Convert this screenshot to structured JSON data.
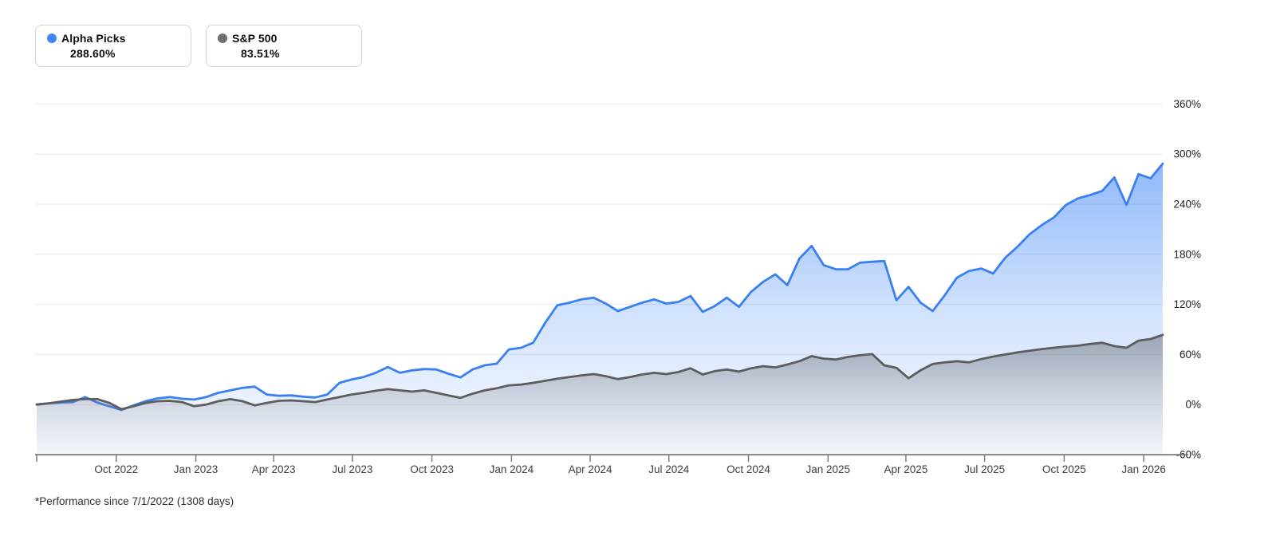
{
  "legend": {
    "items": [
      {
        "name": "Alpha Picks",
        "value": "288.60%",
        "color": "#3f87f6"
      },
      {
        "name": "S&P 500",
        "value": "83.51%",
        "color": "#717171"
      }
    ]
  },
  "footnote": "*Performance since 7/1/2022 (1308 days)",
  "chart_data": {
    "type": "area",
    "title": "Alpha Picks vs S&P 500 cumulative performance",
    "start_date": "7/1/2022",
    "duration_days": 1308,
    "point_interval_days": 14,
    "values_unit": "percent",
    "ylim": [
      -60,
      360
    ],
    "grid": true,
    "legend_position": "top-left",
    "y_ticks": [
      {
        "value": 360,
        "label": "360%"
      },
      {
        "value": 300,
        "label": "300%"
      },
      {
        "value": 240,
        "label": "240%"
      },
      {
        "value": 180,
        "label": "180%"
      },
      {
        "value": 120,
        "label": "120%"
      },
      {
        "value": 60,
        "label": "60%"
      },
      {
        "value": 0,
        "label": "0%"
      },
      {
        "value": -60,
        "label": "-60%"
      }
    ],
    "x_ticks": [
      {
        "day": 92,
        "label": "Oct 2022"
      },
      {
        "day": 184,
        "label": "Jan 2023"
      },
      {
        "day": 274,
        "label": "Apr 2023"
      },
      {
        "day": 365,
        "label": "Jul 2023"
      },
      {
        "day": 457,
        "label": "Oct 2023"
      },
      {
        "day": 549,
        "label": "Jan 2024"
      },
      {
        "day": 640,
        "label": "Apr 2024"
      },
      {
        "day": 731,
        "label": "Jul 2024"
      },
      {
        "day": 823,
        "label": "Oct 2024"
      },
      {
        "day": 915,
        "label": "Jan 2025"
      },
      {
        "day": 1005,
        "label": "Apr 2025"
      },
      {
        "day": 1096,
        "label": "Jul 2025"
      },
      {
        "day": 1188,
        "label": "Oct 2025"
      },
      {
        "day": 1280,
        "label": "Jan 2026"
      }
    ],
    "series": [
      {
        "name": "Alpha Picks",
        "final_value": 288.6,
        "line_color": "#3a80f2",
        "values": [
          0,
          1.5,
          2.5,
          3,
          9,
          2.5,
          -2,
          -6.5,
          -1,
          4,
          7.5,
          9,
          7,
          6,
          9,
          14,
          17,
          20,
          21.5,
          12,
          10.5,
          11,
          9.5,
          8.5,
          12,
          26,
          30,
          33,
          38,
          45,
          38,
          41,
          42.5,
          42,
          37,
          32.5,
          42,
          47,
          49,
          66,
          68,
          74,
          98,
          119,
          122,
          126,
          128,
          121,
          112,
          117,
          122,
          126,
          121,
          123,
          130,
          111,
          118,
          128,
          117,
          135,
          147,
          156,
          143,
          175,
          190,
          167,
          162,
          162,
          170,
          171,
          172,
          125,
          141,
          122,
          112,
          131,
          152,
          160,
          163,
          157,
          176,
          189,
          204,
          215,
          224,
          239,
          247,
          251,
          256,
          272,
          239,
          276,
          271,
          288.6
        ]
      },
      {
        "name": "S&P 500",
        "final_value": 83.51,
        "line_color": "#5d5d5d",
        "values": [
          0,
          1.5,
          3.5,
          5.5,
          6.5,
          6.5,
          2,
          -5.5,
          -2,
          2,
          4,
          4.5,
          3,
          -2,
          0,
          4,
          6.5,
          4,
          -1,
          2,
          4.5,
          5,
          4,
          3,
          6,
          9,
          12,
          14,
          16.5,
          18.5,
          17,
          15.5,
          17,
          14,
          11,
          8,
          13,
          17,
          19.5,
          23,
          24,
          26,
          28.5,
          31,
          33,
          35,
          36.5,
          34,
          30.5,
          33,
          36,
          38,
          36.5,
          39,
          43.5,
          36,
          40,
          42,
          39.5,
          43.5,
          46,
          44.5,
          48,
          52,
          58,
          55,
          54,
          57,
          59,
          60.5,
          47,
          44,
          31.5,
          41,
          48.5,
          50.5,
          52,
          50.5,
          54.5,
          57.5,
          60,
          62.5,
          64.5,
          66.5,
          68,
          69.5,
          70.5,
          72.5,
          74,
          70,
          68,
          76.5,
          78.5,
          83.51
        ]
      }
    ]
  }
}
